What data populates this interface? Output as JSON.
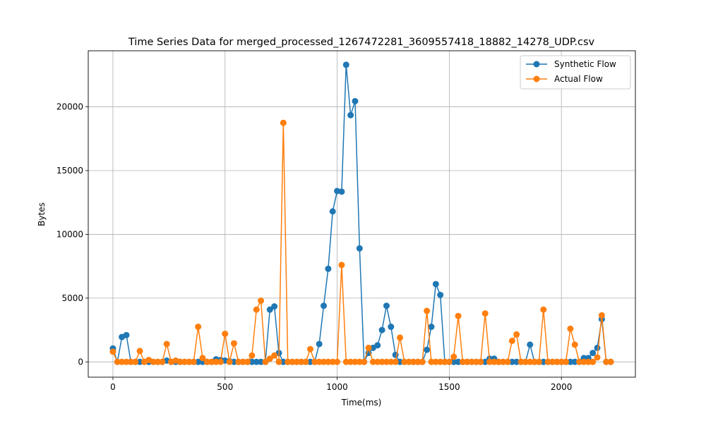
{
  "chart_data": {
    "type": "line",
    "title": "Time Series Data for merged_processed_1267472281_3609557418_18882_14278_UDP.csv",
    "xlabel": "Time(ms)",
    "ylabel": "Bytes",
    "xlim": [
      -110,
      2330
    ],
    "ylim": [
      -1200,
      24400
    ],
    "xticks": [
      0,
      500,
      1000,
      1500,
      2000
    ],
    "yticks": [
      0,
      5000,
      10000,
      15000,
      20000
    ],
    "grid": true,
    "legend_position": "top-right",
    "x": [
      0,
      20,
      40,
      60,
      80,
      100,
      120,
      140,
      160,
      180,
      200,
      220,
      240,
      260,
      280,
      300,
      320,
      340,
      360,
      380,
      400,
      420,
      440,
      460,
      480,
      500,
      520,
      540,
      560,
      580,
      600,
      620,
      640,
      660,
      680,
      700,
      720,
      740,
      760,
      780,
      800,
      820,
      840,
      860,
      880,
      900,
      920,
      940,
      960,
      980,
      1000,
      1020,
      1040,
      1060,
      1080,
      1100,
      1120,
      1140,
      1160,
      1180,
      1200,
      1220,
      1240,
      1260,
      1280,
      1300,
      1320,
      1340,
      1360,
      1380,
      1400,
      1420,
      1440,
      1460,
      1480,
      1500,
      1520,
      1540,
      1560,
      1580,
      1600,
      1620,
      1640,
      1660,
      1680,
      1700,
      1720,
      1740,
      1760,
      1780,
      1800,
      1820,
      1840,
      1860,
      1880,
      1900,
      1920,
      1940,
      1960,
      1980,
      2000,
      2020,
      2040,
      2060,
      2080,
      2100,
      2120,
      2140,
      2160,
      2180,
      2200,
      2220
    ],
    "series": [
      {
        "name": "Synthetic Flow",
        "color": "#1f77b4",
        "values": [
          1050,
          0,
          1950,
          2100,
          0,
          0,
          0,
          0,
          0,
          0,
          0,
          0,
          100,
          0,
          0,
          0,
          0,
          0,
          0,
          0,
          0,
          0,
          0,
          200,
          150,
          100,
          50,
          0,
          0,
          0,
          0,
          0,
          0,
          0,
          0,
          4100,
          4350,
          700,
          0,
          0,
          0,
          0,
          0,
          0,
          0,
          0,
          1400,
          4400,
          7300,
          11800,
          13400,
          13350,
          23300,
          19350,
          20450,
          8900,
          0,
          700,
          1100,
          1300,
          2500,
          4400,
          2750,
          550,
          0,
          0,
          0,
          0,
          0,
          0,
          950,
          2750,
          6100,
          5250,
          0,
          0,
          0,
          0,
          0,
          0,
          0,
          0,
          0,
          0,
          250,
          250,
          0,
          0,
          0,
          0,
          0,
          0,
          0,
          1350,
          0,
          0,
          0,
          0,
          0,
          0,
          0,
          0,
          0,
          0,
          0,
          300,
          300,
          700,
          1100,
          3350,
          0,
          0
        ]
      },
      {
        "name": "Actual Flow",
        "color": "#ff7f0e",
        "values": [
          800,
          0,
          0,
          0,
          0,
          0,
          850,
          0,
          150,
          0,
          0,
          0,
          1400,
          0,
          100,
          0,
          0,
          0,
          0,
          2750,
          300,
          0,
          0,
          0,
          0,
          2200,
          0,
          1450,
          0,
          0,
          0,
          500,
          4100,
          4800,
          0,
          250,
          500,
          0,
          18750,
          0,
          0,
          0,
          0,
          0,
          1000,
          0,
          0,
          0,
          0,
          0,
          0,
          7600,
          0,
          0,
          0,
          0,
          0,
          1100,
          0,
          0,
          0,
          0,
          0,
          0,
          1900,
          0,
          0,
          0,
          0,
          0,
          4000,
          0,
          0,
          0,
          0,
          0,
          400,
          3600,
          0,
          0,
          0,
          0,
          0,
          3800,
          0,
          0,
          0,
          0,
          0,
          1650,
          2150,
          0,
          0,
          0,
          0,
          0,
          4100,
          0,
          0,
          0,
          0,
          0,
          2600,
          1350,
          0,
          0,
          0,
          0,
          350,
          3650,
          0,
          0
        ]
      }
    ]
  }
}
